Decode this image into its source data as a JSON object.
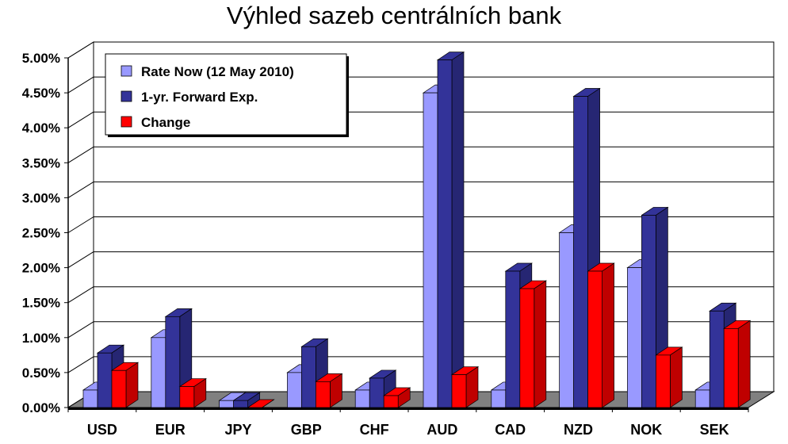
{
  "chart_data": {
    "type": "bar",
    "title": "Výhled sazeb centrálních bank",
    "categories": [
      "USD",
      "EUR",
      "JPY",
      "GBP",
      "CHF",
      "AUD",
      "CAD",
      "NZD",
      "NOK",
      "SEK"
    ],
    "series": [
      {
        "name": "Rate Now (12 May 2010)",
        "values": [
          0.25,
          1.0,
          0.1,
          0.5,
          0.25,
          4.5,
          0.25,
          2.5,
          2.0,
          0.25
        ],
        "color": "#9999ff"
      },
      {
        "name": "1-yr. Forward Exp.",
        "values": [
          0.78,
          1.3,
          0.1,
          0.87,
          0.42,
          4.97,
          1.95,
          4.45,
          2.75,
          1.38
        ],
        "color": "#333399"
      },
      {
        "name": "Change",
        "values": [
          0.53,
          0.3,
          0.0,
          0.37,
          0.17,
          0.47,
          1.7,
          1.95,
          0.75,
          1.13
        ],
        "color": "#ff0000"
      }
    ],
    "ylim": [
      0,
      5
    ],
    "yticks": [
      "0.00%",
      "0.50%",
      "1.00%",
      "1.50%",
      "2.00%",
      "2.50%",
      "3.00%",
      "3.50%",
      "4.00%",
      "4.50%",
      "5.00%"
    ],
    "grid": true,
    "legend_position": "top-left",
    "floor_color": "#808080"
  }
}
